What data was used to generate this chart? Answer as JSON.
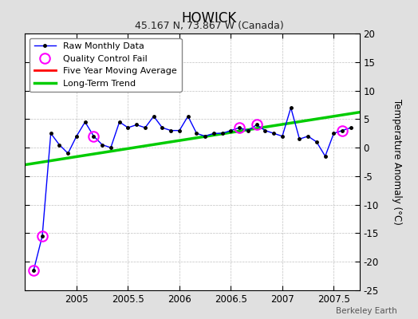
{
  "title": "HOWICK",
  "subtitle": "45.167 N, 73.867 W (Canada)",
  "ylabel": "Temperature Anomaly (°C)",
  "watermark": "Berkeley Earth",
  "xlim": [
    2004.5,
    2007.75
  ],
  "ylim": [
    -25,
    20
  ],
  "xticks": [
    2005,
    2005.5,
    2006,
    2006.5,
    2007,
    2007.5
  ],
  "yticks": [
    -25,
    -20,
    -15,
    -10,
    -5,
    0,
    5,
    10,
    15,
    20
  ],
  "background_color": "#e0e0e0",
  "plot_bg_color": "#ffffff",
  "raw_x": [
    2004.583,
    2004.667,
    2004.75,
    2004.833,
    2004.917,
    2005.0,
    2005.083,
    2005.167,
    2005.25,
    2005.333,
    2005.417,
    2005.5,
    2005.583,
    2005.667,
    2005.75,
    2005.833,
    2005.917,
    2006.0,
    2006.083,
    2006.167,
    2006.25,
    2006.333,
    2006.417,
    2006.5,
    2006.583,
    2006.667,
    2006.75,
    2006.833,
    2006.917,
    2007.0,
    2007.083,
    2007.167,
    2007.25,
    2007.333,
    2007.417,
    2007.5,
    2007.583,
    2007.667
  ],
  "raw_y": [
    -21.5,
    -15.5,
    2.5,
    0.5,
    -1.0,
    2.0,
    4.5,
    2.0,
    0.5,
    0.0,
    4.5,
    3.5,
    4.0,
    3.5,
    5.5,
    3.5,
    3.0,
    3.0,
    5.5,
    2.5,
    2.0,
    2.5,
    2.5,
    3.0,
    3.5,
    3.0,
    4.0,
    3.0,
    2.5,
    2.0,
    7.0,
    1.5,
    2.0,
    1.0,
    -1.5,
    2.5,
    3.0,
    3.5
  ],
  "qc_fail_x": [
    2004.583,
    2004.667,
    2005.167,
    2006.583,
    2006.75,
    2007.583
  ],
  "qc_fail_y": [
    -21.5,
    -15.5,
    2.0,
    3.5,
    4.0,
    3.0
  ],
  "trend_x": [
    2004.5,
    2007.75
  ],
  "trend_y": [
    -3.0,
    6.2
  ],
  "raw_line_color": "#0000ff",
  "raw_marker_color": "#000000",
  "qc_color": "#ff00ff",
  "trend_color": "#00cc00",
  "moving_avg_color": "#ff0000"
}
